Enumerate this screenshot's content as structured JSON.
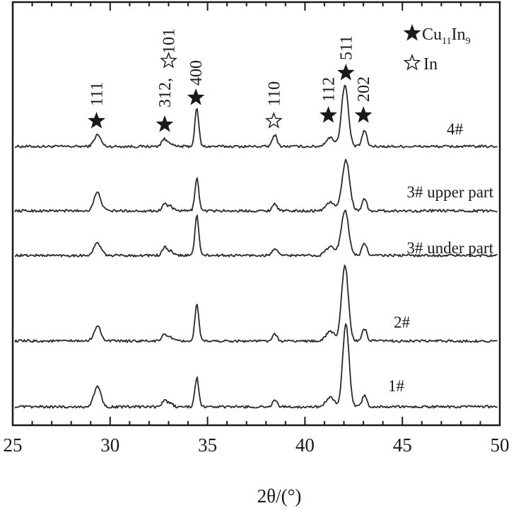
{
  "chart_data": {
    "type": "line",
    "title": "",
    "xlabel": "2θ/(°)",
    "ylabel": "",
    "xlim": [
      25,
      50
    ],
    "x_ticks": [
      25,
      30,
      35,
      40,
      45,
      50
    ],
    "grid": false,
    "legend": {
      "placement": "top-right",
      "items": [
        {
          "symbol": "filled-star",
          "phase": "Cu",
          "sub1": "11",
          "mid": "In",
          "sub2": "9"
        },
        {
          "symbol": "open-star",
          "label": "In"
        }
      ]
    },
    "peak_annotations": [
      {
        "x": 29.3,
        "label": "111",
        "symbol": "filled-star"
      },
      {
        "x": 32.8,
        "label": "312,",
        "symbol": "filled-star"
      },
      {
        "x": 33.0,
        "label": "101",
        "symbol": "open-star"
      },
      {
        "x": 34.4,
        "label": "400",
        "symbol": "filled-star"
      },
      {
        "x": 38.4,
        "label": "110",
        "symbol": "open-star"
      },
      {
        "x": 41.2,
        "label": "112",
        "symbol": "filled-star"
      },
      {
        "x": 42.1,
        "label": "511",
        "symbol": "filled-star"
      },
      {
        "x": 43.0,
        "label": "202",
        "symbol": "filled-star"
      }
    ],
    "series": [
      {
        "name": "4#",
        "peaks": [
          {
            "x": 29.35,
            "h": 0.16,
            "w": 0.17
          },
          {
            "x": 32.75,
            "h": 0.1,
            "w": 0.12
          },
          {
            "x": 33.05,
            "h": 0.06,
            "w": 0.12
          },
          {
            "x": 34.45,
            "h": 0.52,
            "w": 0.1
          },
          {
            "x": 38.45,
            "h": 0.16,
            "w": 0.12
          },
          {
            "x": 41.3,
            "h": 0.12,
            "w": 0.22
          },
          {
            "x": 42.05,
            "h": 0.85,
            "w": 0.17
          },
          {
            "x": 43.05,
            "h": 0.22,
            "w": 0.12
          }
        ]
      },
      {
        "name": "3# upper part",
        "peaks": [
          {
            "x": 29.35,
            "h": 0.25,
            "w": 0.18
          },
          {
            "x": 32.8,
            "h": 0.1,
            "w": 0.12
          },
          {
            "x": 33.1,
            "h": 0.06,
            "w": 0.12
          },
          {
            "x": 34.45,
            "h": 0.45,
            "w": 0.1
          },
          {
            "x": 38.45,
            "h": 0.1,
            "w": 0.12
          },
          {
            "x": 41.3,
            "h": 0.12,
            "w": 0.22
          },
          {
            "x": 42.1,
            "h": 0.7,
            "w": 0.19
          },
          {
            "x": 43.05,
            "h": 0.17,
            "w": 0.12
          }
        ]
      },
      {
        "name": "3# under part",
        "peaks": [
          {
            "x": 29.35,
            "h": 0.17,
            "w": 0.18
          },
          {
            "x": 32.8,
            "h": 0.11,
            "w": 0.12
          },
          {
            "x": 33.1,
            "h": 0.06,
            "w": 0.12
          },
          {
            "x": 34.45,
            "h": 0.55,
            "w": 0.1
          },
          {
            "x": 38.45,
            "h": 0.1,
            "w": 0.12
          },
          {
            "x": 41.3,
            "h": 0.12,
            "w": 0.22
          },
          {
            "x": 42.05,
            "h": 0.62,
            "w": 0.19
          },
          {
            "x": 43.05,
            "h": 0.17,
            "w": 0.12
          }
        ]
      },
      {
        "name": "2#",
        "peaks": [
          {
            "x": 29.35,
            "h": 0.2,
            "w": 0.18
          },
          {
            "x": 32.8,
            "h": 0.1,
            "w": 0.12
          },
          {
            "x": 33.1,
            "h": 0.05,
            "w": 0.12
          },
          {
            "x": 34.45,
            "h": 0.5,
            "w": 0.1
          },
          {
            "x": 38.45,
            "h": 0.09,
            "w": 0.12
          },
          {
            "x": 41.3,
            "h": 0.13,
            "w": 0.22
          },
          {
            "x": 42.05,
            "h": 1.05,
            "w": 0.17
          },
          {
            "x": 43.05,
            "h": 0.17,
            "w": 0.12
          }
        ]
      },
      {
        "name": "1#",
        "peaks": [
          {
            "x": 29.35,
            "h": 0.28,
            "w": 0.18
          },
          {
            "x": 32.8,
            "h": 0.09,
            "w": 0.12
          },
          {
            "x": 33.1,
            "h": 0.05,
            "w": 0.12
          },
          {
            "x": 34.45,
            "h": 0.4,
            "w": 0.1
          },
          {
            "x": 38.45,
            "h": 0.09,
            "w": 0.12
          },
          {
            "x": 41.3,
            "h": 0.13,
            "w": 0.22
          },
          {
            "x": 42.1,
            "h": 1.15,
            "w": 0.16
          },
          {
            "x": 43.05,
            "h": 0.15,
            "w": 0.12
          }
        ]
      }
    ]
  }
}
